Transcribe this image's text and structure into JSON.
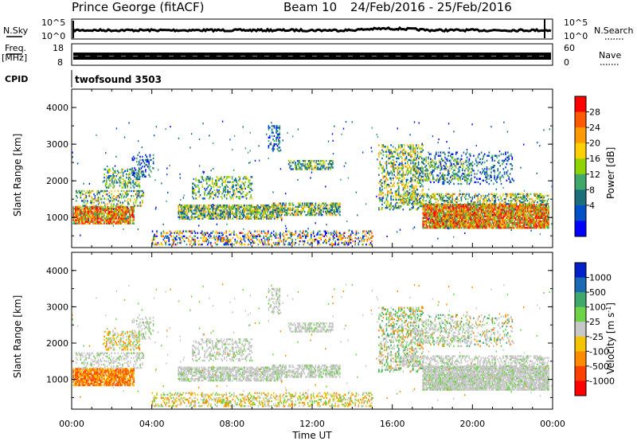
{
  "header": {
    "title": "Prince George (fitACF)",
    "beam": "Beam 10",
    "dates": "24/Feb/2016 - 25/Feb/2016"
  },
  "panels": {
    "nsky_label": "N.Sky",
    "nsky_ticks": [
      "10^5",
      "10^0"
    ],
    "nsearch_label": "N.Search",
    "nsearch_ticks": [
      "10^5",
      "10^0"
    ],
    "freq_label": "Freq.",
    "freq_unit": "[MHz]",
    "freq_ticks": [
      "18",
      "8"
    ],
    "nave_label": "Nave",
    "nave_ticks": [
      "60",
      "0"
    ],
    "cpid_label": "CPID",
    "cpid_value": "twofsound 3503"
  },
  "chart_data": [
    {
      "type": "heatmap",
      "title": "",
      "ylabel": "Slant Range [km]",
      "xlabel": "",
      "ylim": [
        180,
        4500
      ],
      "yticks": [
        "4000",
        "3000",
        "2000",
        "1000"
      ],
      "colorbar_label": "Power [dB]",
      "colorbar_ticks": [
        "28",
        "24",
        "20",
        "16",
        "12",
        "8",
        "4"
      ],
      "colorbar_colors": [
        "#ff0000",
        "#ff5a00",
        "#ff9a00",
        "#ffd000",
        "#8fd400",
        "#3fa86a",
        "#1a6f7a",
        "#0050c8",
        "#0000ff"
      ]
    },
    {
      "type": "heatmap",
      "title": "",
      "ylabel": "Slant Range [km]",
      "xlabel": "Time UT",
      "ylim": [
        180,
        4500
      ],
      "yticks": [
        "4000",
        "3000",
        "2000",
        "1000"
      ],
      "xticks": [
        "00:00",
        "04:00",
        "08:00",
        "12:00",
        "16:00",
        "20:00",
        "00:00"
      ],
      "colorbar_label": "Velocity [m s^-1]",
      "colorbar_ticks": [
        "1000",
        "500",
        "100",
        "25",
        "-25",
        "-100",
        "-500",
        "-1000"
      ],
      "colorbar_colors": [
        "#0020c8",
        "#1a6ab4",
        "#3fa86a",
        "#6fd34a",
        "#c8c8c8",
        "#f5c400",
        "#ff8c00",
        "#ff4000",
        "#ff0000"
      ]
    }
  ]
}
